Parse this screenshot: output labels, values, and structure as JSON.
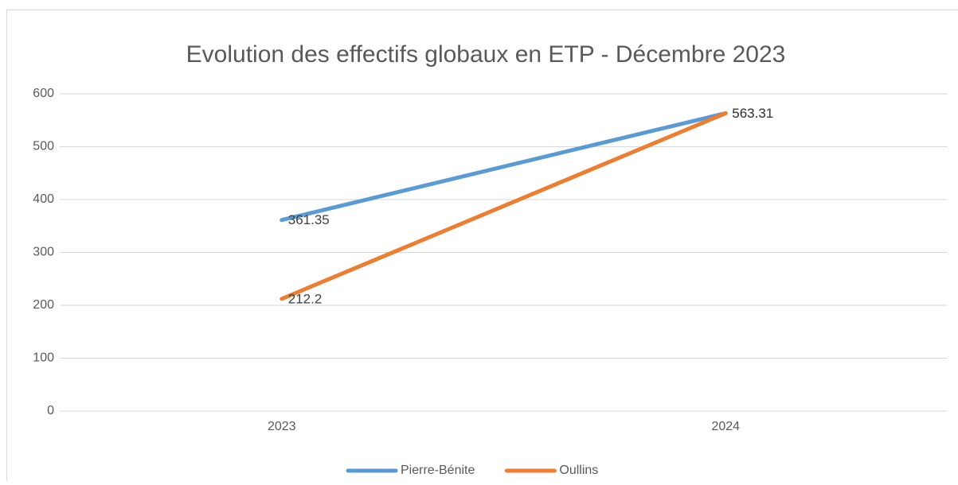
{
  "chart_data": {
    "type": "line",
    "title": "Evolution des effectifs globaux en ETP - Décembre 2023",
    "categories": [
      "2023",
      "2024"
    ],
    "series": [
      {
        "name": "Pierre-Bénite",
        "color": "#5b9bd5",
        "values": [
          361.35,
          563.31
        ]
      },
      {
        "name": "Oullins",
        "color": "#ed7d31",
        "values": [
          212.2,
          563.31
        ]
      }
    ],
    "ylim": [
      0,
      600
    ],
    "yticks": [
      0,
      100,
      200,
      300,
      400,
      500,
      600
    ],
    "grid": true,
    "legend": "bottom"
  }
}
